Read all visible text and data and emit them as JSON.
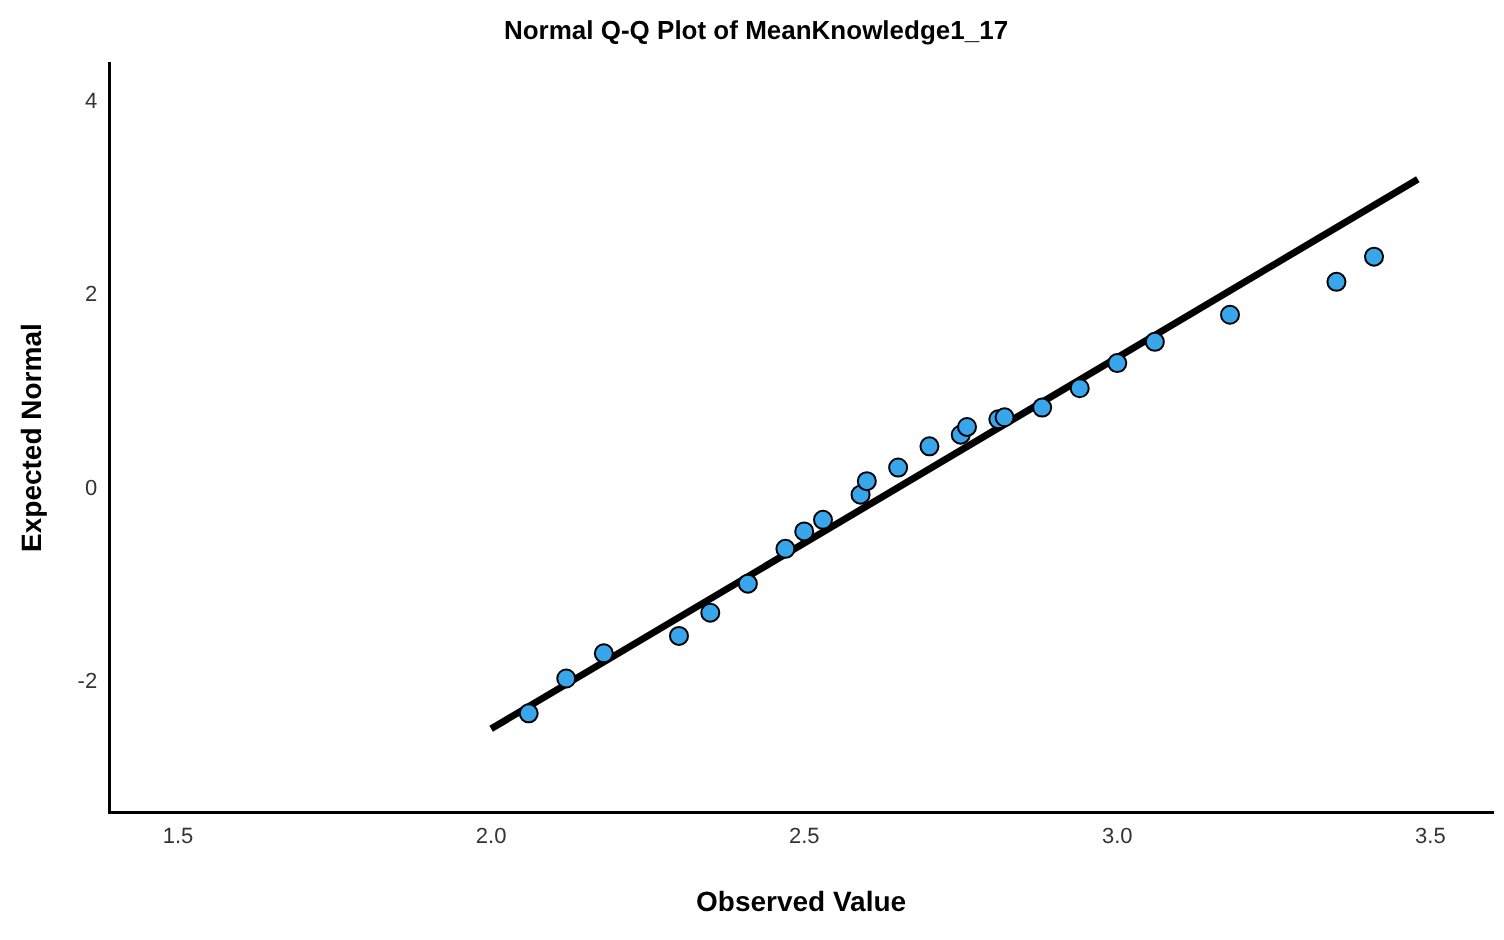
{
  "chart_data": {
    "type": "scatter",
    "title": "Normal Q-Q Plot of MeanKnowledge1_17",
    "xlabel": "Observed Value",
    "ylabel": "Expected Normal",
    "xlim": [
      1.39,
      3.6
    ],
    "xticks": [
      {
        "value": 1.5,
        "label": "1.5"
      },
      {
        "value": 2,
        "label": "2.0"
      },
      {
        "value": 2.5,
        "label": "2.5"
      },
      {
        "value": 3,
        "label": "3.0"
      },
      {
        "value": 3.5,
        "label": "3.5"
      }
    ],
    "ylim": [
      -3.34,
      4.4
    ],
    "yticks": [
      -2,
      0,
      2,
      4
    ],
    "grid": false,
    "legend": false,
    "marker": "circle",
    "series": [
      {
        "type": "scatter",
        "color": "#39a6ec",
        "x": [
          2.06,
          2.12,
          2.18,
          2.3,
          2.35,
          2.41,
          2.47,
          2.5,
          2.53,
          2.59,
          2.6,
          2.65,
          2.7,
          2.75,
          2.76,
          2.81,
          2.82,
          2.88,
          2.94,
          3.0,
          3.06,
          3.18,
          3.35,
          3.41
        ],
        "values": [
          -2.32,
          -1.96,
          -1.7,
          -1.52,
          -1.28,
          -0.98,
          -0.62,
          -0.44,
          -0.32,
          -0.06,
          0.08,
          0.22,
          0.44,
          0.56,
          0.64,
          0.72,
          0.74,
          0.84,
          1.04,
          1.3,
          1.52,
          1.8,
          2.14,
          2.4
        ]
      },
      {
        "type": "line",
        "color": "#000000",
        "marker": "none",
        "line_style": "solid",
        "x": [
          2.0,
          3.48
        ],
        "values": [
          -2.48,
          3.2
        ]
      }
    ]
  }
}
